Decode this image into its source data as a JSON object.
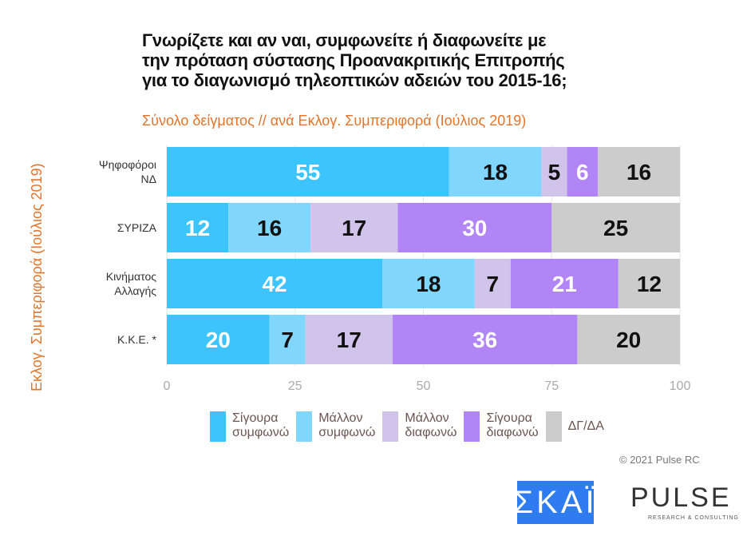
{
  "chart_data": {
    "type": "bar",
    "orientation": "horizontal",
    "stacked": true,
    "title": "Γνωρίζετε και αν ναι, συμφωνείτε ή διαφωνείτε με\nτην πρόταση σύστασης Προανακριτικής Επιτροπής\nγια το διαγωνισμό τηλεοπτικών αδειών του 2015-16;",
    "subtitle": "Σύνολο δείγματος // ανά Εκλογ. Συμπεριφορά (Ιούλιος 2019)",
    "ylabel": "Εκλογ. Συμπεριφορά (Ιούλιος 2019)",
    "categories": [
      "Ψηφοφόροι\nΝΔ",
      "ΣΥΡΙΖΑ",
      "Κινήματος\nΑλλαγής",
      "Κ.Κ.Ε. *"
    ],
    "series": [
      {
        "name": "Σίγουρα\nσυμφωνώ",
        "color": "#3dc4fd",
        "values": [
          55,
          12,
          42,
          20
        ]
      },
      {
        "name": "Μάλλον\nσυμφωνώ",
        "color": "#80d6fd",
        "values": [
          18,
          16,
          18,
          7
        ]
      },
      {
        "name": "Μάλλον\nδιαφωνώ",
        "color": "#d0c4ea",
        "values": [
          5,
          17,
          7,
          17
        ]
      },
      {
        "name": "Σίγουρα\nδιαφωνώ",
        "color": "#b185f6",
        "values": [
          6,
          30,
          21,
          36
        ]
      },
      {
        "name": "ΔΓ/ΔΑ",
        "color": "#cccccc",
        "values": [
          16,
          25,
          12,
          20
        ]
      }
    ],
    "xlim": [
      0,
      100
    ],
    "xticks": [
      "0",
      "25",
      "50",
      "75",
      "100"
    ],
    "grid": true,
    "legend": "bottom"
  },
  "footer": {
    "copyright": "© 2021 Pulse RC",
    "logo_skai": "ΣΚΑΪ",
    "logo_pulse": "PULSE",
    "logo_pulse_sub": "RESEARCH & CONSULTING"
  }
}
